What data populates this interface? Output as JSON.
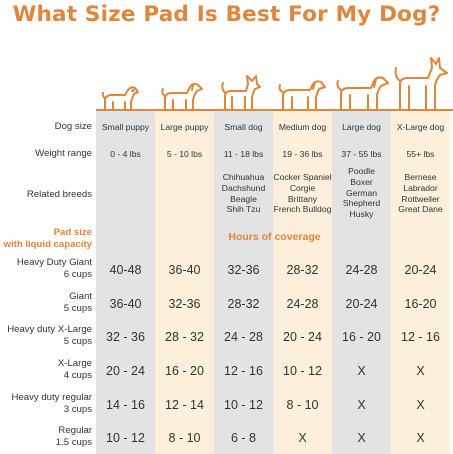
{
  "title": "What Size Pad Is Best For My Dog?",
  "colors": {
    "accent": "#e0853a",
    "grey_col": "#e3e3e3",
    "cream_col": "#fcefdc"
  },
  "icons": [
    "dog-silhouette-icon"
  ],
  "row_labels": {
    "dog_size": "Dog size",
    "weight_range": "Weight range",
    "related_breeds": "Related breeds"
  },
  "columns": [
    {
      "size": "Small puppy",
      "weight": "0 - 4 lbs",
      "breeds": []
    },
    {
      "size": "Large puppy",
      "weight": "5 - 10 lbs",
      "breeds": []
    },
    {
      "size": "Small dog",
      "weight": "11 - 18 lbs",
      "breeds": [
        "Chihuahua",
        "Dachshund",
        "Beagle",
        "Shih Tzu"
      ]
    },
    {
      "size": "Medium dog",
      "weight": "19 - 36 lbs",
      "breeds": [
        "Cocker Spaniel",
        "Corgie",
        "Brittany",
        "French Bulldog"
      ]
    },
    {
      "size": "Large dog",
      "weight": "37 - 55 lbs",
      "breeds": [
        "Poodle",
        "Boxer",
        "German",
        "Shepherd",
        "Husky"
      ]
    },
    {
      "size": "X-Large dog",
      "weight": "55+ lbs",
      "breeds": [
        "Bernese",
        "Labrador",
        "Rottweiler",
        "Great Dane"
      ]
    }
  ],
  "pad_header": {
    "line1": "Pad size",
    "line2": "with liquid capacity"
  },
  "hours_header": "Hours of coverage",
  "pads": [
    {
      "name": "Heavy Duty Giant",
      "capacity": "6 cups",
      "hours": [
        "40-48",
        "36-40",
        "32-36",
        "28-32",
        "24-28",
        "20-24"
      ]
    },
    {
      "name": "Giant",
      "capacity": "5 cups",
      "hours": [
        "36-40",
        "32-36",
        "28-32",
        "24-28",
        "20-24",
        "16-20"
      ]
    },
    {
      "name": "Heavy duty X-Large",
      "capacity": "5 cups",
      "hours": [
        "32 - 36",
        "28 - 32",
        "24 - 28",
        "20 - 24",
        "16 - 20",
        "12 - 16"
      ]
    },
    {
      "name": "X-Large",
      "capacity": "4 cups",
      "hours": [
        "20 - 24",
        "16 - 20",
        "12 - 16",
        "10 - 12",
        "X",
        "X"
      ]
    },
    {
      "name": "Heavy duty regular",
      "capacity": "3 cups",
      "hours": [
        "14 - 16",
        "12 - 14",
        "10 - 12",
        "8 - 10",
        "X",
        "X"
      ]
    },
    {
      "name": "Regular",
      "capacity": "1.5 cups",
      "hours": [
        "10 - 12",
        "8 - 10",
        "6 - 8",
        "X",
        "X",
        "X"
      ]
    }
  ]
}
